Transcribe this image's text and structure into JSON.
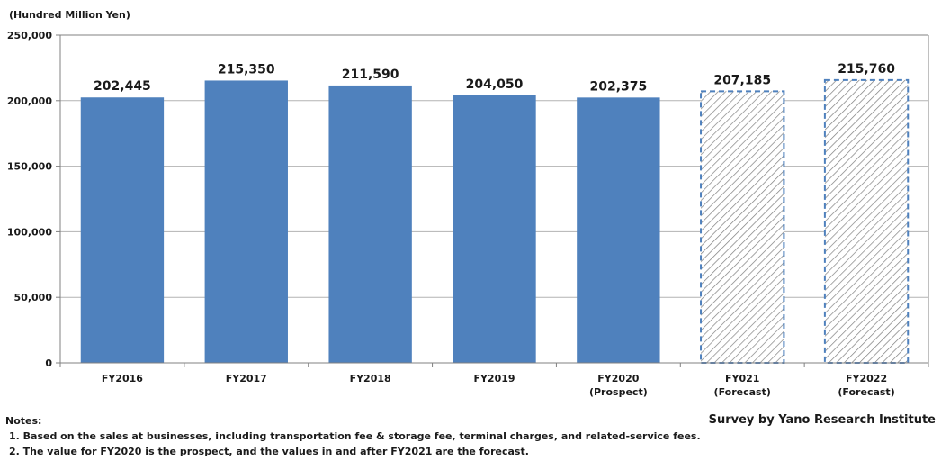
{
  "chart_data": {
    "type": "bar",
    "unit_label": "(Hundred Million Yen)",
    "categories": [
      [
        "FY2016"
      ],
      [
        "FY2017"
      ],
      [
        "FY2018"
      ],
      [
        "FY2019"
      ],
      [
        "FY2020",
        "(Prospect)"
      ],
      [
        "FY021",
        "(Forecast)"
      ],
      [
        "FY2022",
        "(Forecast)"
      ]
    ],
    "values": [
      202445,
      215350,
      211590,
      204050,
      202375,
      207185,
      215760
    ],
    "value_labels": [
      "202,445",
      "215,350",
      "211,590",
      "204,050",
      "202,375",
      "207,185",
      "215,760"
    ],
    "forecast_flags": [
      false,
      false,
      false,
      false,
      false,
      true,
      true
    ],
    "ylim": [
      0,
      250000
    ],
    "yticks": [
      0,
      50000,
      100000,
      150000,
      200000,
      250000
    ],
    "ytick_labels": [
      "0",
      "50,000",
      "100,000",
      "150,000",
      "200,000",
      "250,000"
    ],
    "grid": true,
    "colors": {
      "bar": "#4f81bd",
      "forecast_hatch": "#808080",
      "forecast_border": "#4f81bd",
      "grid": "#b3b3b3",
      "axis": "#808080"
    }
  },
  "notes": {
    "title": "Notes:",
    "items": [
      "1. Based on the sales at businesses, including  transportation fee & storage fee, terminal charges, and related-service fees.",
      "2. The value for FY2020 is the prospect, and the values in and after FY2021 are the forecast."
    ]
  },
  "source": "Survey by Yano Research Institute"
}
